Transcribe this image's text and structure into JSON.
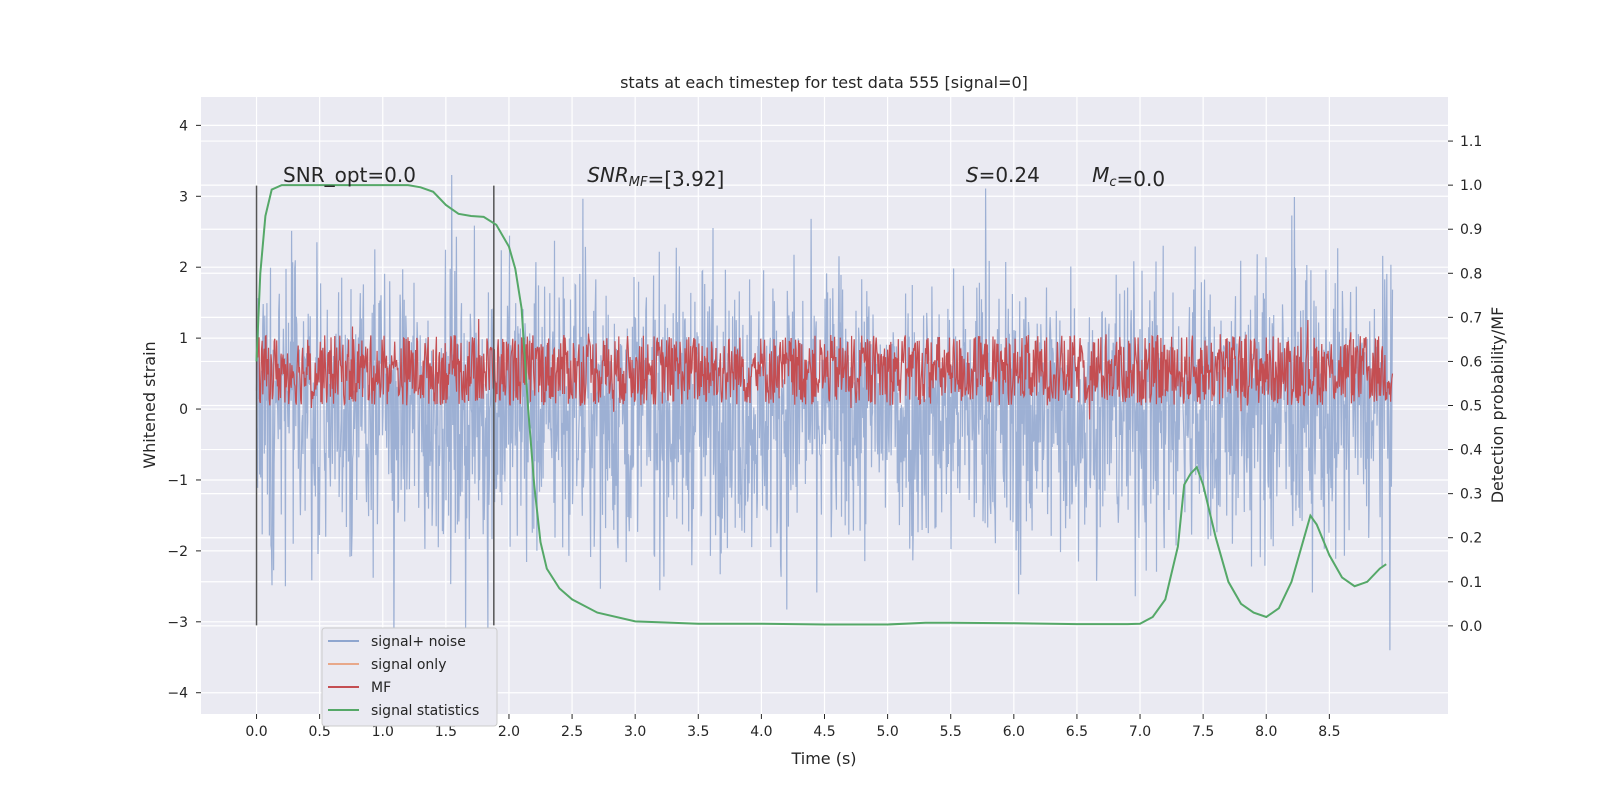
{
  "chart_data": {
    "type": "line",
    "title": "stats at each timestep for test data 555 [signal=0]",
    "xlabel": "Time (s)",
    "ylabel_left": "Whitened strain",
    "ylabel_right": "Detection probability/MF",
    "xlim": [
      -0.44,
      9.44
    ],
    "ylim_left": [
      -4.3,
      4.4
    ],
    "ylim_right": [
      -0.2,
      1.2
    ],
    "x_ticks": [
      0.0,
      0.5,
      1.0,
      1.5,
      2.0,
      2.5,
      3.0,
      3.5,
      4.0,
      4.5,
      5.0,
      5.5,
      6.0,
      6.5,
      7.0,
      7.5,
      8.0,
      8.5
    ],
    "x_tick_labels": [
      "0.0",
      "0.5",
      "1.0",
      "1.5",
      "2.0",
      "2.5",
      "3.0",
      "3.5",
      "4.0",
      "4.5",
      "5.0",
      "5.5",
      "6.0",
      "6.5",
      "7.0",
      "7.5",
      "8.0",
      "8.5"
    ],
    "y_left_ticks": [
      4,
      3,
      2,
      1,
      0,
      -1,
      -2,
      -3,
      -4
    ],
    "y_left_tick_labels": [
      "4",
      "3",
      "2",
      "1",
      "0",
      "−1",
      "−2",
      "−3",
      "−4"
    ],
    "y_right_ticks": [
      1.1,
      1.0,
      0.9,
      0.8,
      0.7,
      0.6,
      0.5,
      0.4,
      0.3,
      0.2,
      0.1,
      0.0
    ],
    "y_right_tick_labels": [
      "1.1",
      "1.0",
      "0.9",
      "0.8",
      "0.7",
      "0.6",
      "0.5",
      "0.4",
      "0.3",
      "0.2",
      "0.1",
      "0.0"
    ],
    "grid": true,
    "legend_position": "lower-left",
    "series": [
      {
        "name": "signal+ noise",
        "axis": "left",
        "color": "#8fa6cf",
        "x_range": [
          0.0,
          9.0
        ],
        "spread": [
          -3.4,
          3.3
        ]
      },
      {
        "name": "signal only",
        "axis": "left",
        "color": "#e8a88a",
        "values": []
      },
      {
        "name": "MF",
        "axis": "right",
        "color": "#c44e52",
        "x_range": [
          0.0,
          9.0
        ],
        "band": [
          0.5,
          0.66
        ]
      },
      {
        "name": "signal statistics",
        "axis": "right",
        "color": "#55a868",
        "x": [
          0.0,
          0.03,
          0.07,
          0.12,
          0.2,
          0.3,
          0.5,
          0.8,
          1.0,
          1.2,
          1.3,
          1.4,
          1.5,
          1.6,
          1.7,
          1.8,
          1.9,
          2.0,
          2.05,
          2.1,
          2.15,
          2.2,
          2.25,
          2.3,
          2.4,
          2.5,
          2.7,
          3.0,
          3.5,
          4.0,
          4.5,
          5.0,
          5.3,
          5.5,
          6.0,
          6.5,
          6.9,
          7.0,
          7.1,
          7.2,
          7.3,
          7.35,
          7.4,
          7.45,
          7.5,
          7.6,
          7.7,
          7.8,
          7.9,
          8.0,
          8.1,
          8.2,
          8.3,
          8.35,
          8.4,
          8.5,
          8.6,
          8.7,
          8.8,
          8.9,
          8.95
        ],
        "y": [
          0.6,
          0.8,
          0.93,
          0.99,
          1.0,
          1.0,
          1.0,
          1.0,
          1.0,
          1.0,
          0.995,
          0.985,
          0.955,
          0.935,
          0.93,
          0.928,
          0.91,
          0.86,
          0.81,
          0.72,
          0.5,
          0.32,
          0.19,
          0.13,
          0.085,
          0.06,
          0.03,
          0.01,
          0.005,
          0.005,
          0.003,
          0.003,
          0.007,
          0.007,
          0.006,
          0.004,
          0.004,
          0.005,
          0.02,
          0.06,
          0.18,
          0.32,
          0.345,
          0.36,
          0.32,
          0.2,
          0.1,
          0.05,
          0.03,
          0.02,
          0.04,
          0.1,
          0.2,
          0.25,
          0.23,
          0.16,
          0.11,
          0.09,
          0.1,
          0.13,
          0.14
        ]
      }
    ],
    "vlines": [
      {
        "x": 0.0,
        "ymin": -3.05,
        "ymax": 3.15
      },
      {
        "x": 1.88,
        "ymin": -3.05,
        "ymax": 3.15
      }
    ],
    "annotations": [
      {
        "x": 0.21,
        "y": 3.2,
        "parts": [
          {
            "text": "SNR_opt=0.0",
            "italic": false
          }
        ]
      },
      {
        "x": 2.62,
        "y": 3.2,
        "parts": [
          {
            "text": "SNR",
            "italic": true
          },
          {
            "text": "MF",
            "italic": true,
            "sub": true
          },
          {
            "text": "=[3.92]",
            "italic": false
          }
        ]
      },
      {
        "x": 5.62,
        "y": 3.2,
        "parts": [
          {
            "text": "S",
            "italic": true
          },
          {
            "text": "=0.24",
            "italic": false
          }
        ]
      },
      {
        "x": 6.62,
        "y": 3.2,
        "parts": [
          {
            "text": "M",
            "italic": true
          },
          {
            "text": "c",
            "italic": true,
            "sub": true
          },
          {
            "text": "=0.0",
            "italic": false
          }
        ]
      }
    ],
    "legend": [
      "signal+ noise",
      "signal only",
      "MF",
      "signal statistics"
    ]
  }
}
